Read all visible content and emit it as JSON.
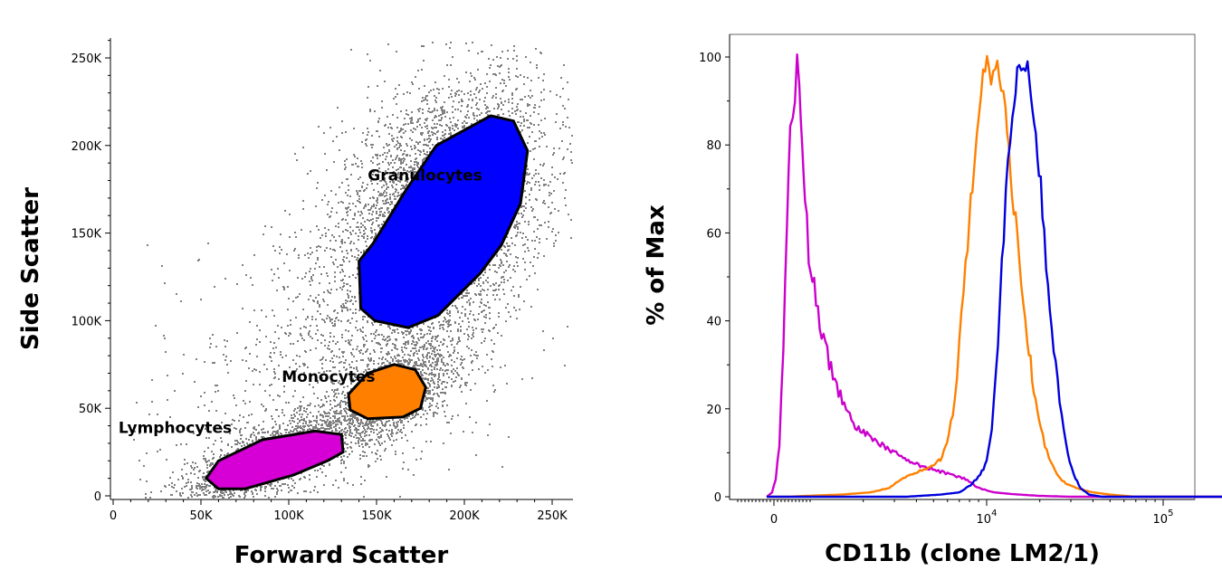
{
  "chart_data": [
    {
      "type": "scatter",
      "xlabel": "Forward Scatter",
      "ylabel": "Side Scatter",
      "xlim": [
        0,
        260000
      ],
      "ylim": [
        0,
        262000
      ],
      "x_ticks": [
        {
          "value": 0,
          "label": "0"
        },
        {
          "value": 50000,
          "label": "50K"
        },
        {
          "value": 100000,
          "label": "100K"
        },
        {
          "value": 150000,
          "label": "150K"
        },
        {
          "value": 200000,
          "label": "200K"
        },
        {
          "value": 250000,
          "label": "250K"
        }
      ],
      "y_ticks": [
        {
          "value": 0,
          "label": "0"
        },
        {
          "value": 50000,
          "label": "50K"
        },
        {
          "value": 100000,
          "label": "100K"
        },
        {
          "value": 150000,
          "label": "150K"
        },
        {
          "value": 200000,
          "label": "200K"
        },
        {
          "value": 250000,
          "label": "250K"
        }
      ],
      "point_color": "#808080",
      "density_clusters": [
        {
          "x": 90000,
          "y": 22000,
          "sx": 30000,
          "sy": 10000,
          "weight": 0.22
        },
        {
          "x": 160000,
          "y": 60000,
          "sx": 18000,
          "sy": 12000,
          "weight": 0.15
        },
        {
          "x": 185000,
          "y": 160000,
          "sx": 30000,
          "sy": 38000,
          "weight": 0.53
        },
        {
          "x": 120000,
          "y": 70000,
          "sx": 50000,
          "sy": 45000,
          "weight": 0.1
        }
      ],
      "gates": [
        {
          "name": "Granulocytes",
          "color": "#0000ff",
          "label_at": [
            145000,
            180000
          ],
          "polygon": [
            [
              215000,
              217000
            ],
            [
              228000,
              214000
            ],
            [
              236000,
              197000
            ],
            [
              232000,
              167000
            ],
            [
              221000,
              143000
            ],
            [
              209000,
              127000
            ],
            [
              185000,
              103000
            ],
            [
              168000,
              96000
            ],
            [
              149000,
              100000
            ],
            [
              141000,
              107000
            ],
            [
              140000,
              134000
            ],
            [
              148000,
              144000
            ],
            [
              167000,
              175000
            ],
            [
              184000,
              200000
            ]
          ]
        },
        {
          "name": "Monocytes",
          "color": "#ff8000",
          "label_at": [
            96000,
            65000
          ],
          "polygon": [
            [
              145000,
              70000
            ],
            [
              160000,
              75000
            ],
            [
              172000,
              72000
            ],
            [
              178000,
              62000
            ],
            [
              175000,
              50000
            ],
            [
              165000,
              45000
            ],
            [
              145000,
              44000
            ],
            [
              135000,
              49000
            ],
            [
              134000,
              58000
            ]
          ]
        },
        {
          "name": "Lymphocytes",
          "color": "#d600d6",
          "label_at": [
            3000,
            36000
          ],
          "polygon": [
            [
              60000,
              20000
            ],
            [
              85000,
              32000
            ],
            [
              115000,
              37000
            ],
            [
              130000,
              35000
            ],
            [
              131000,
              25000
            ],
            [
              122000,
              20000
            ],
            [
              103000,
              12000
            ],
            [
              75000,
              4000
            ],
            [
              60000,
              4000
            ],
            [
              53000,
              10000
            ]
          ]
        }
      ]
    },
    {
      "type": "line",
      "xlabel": "CD11b (clone LM2/1)",
      "ylabel": "% of Max",
      "xscale": "biexponential",
      "ylim": [
        0,
        100
      ],
      "y_ticks": [
        0,
        20,
        40,
        60,
        80,
        100
      ],
      "x_ticks": [
        {
          "value": 0,
          "base": "0",
          "exp": ""
        },
        {
          "value": 10000,
          "base": "10",
          "exp": "4"
        },
        {
          "value": 100000,
          "base": "10",
          "exp": "5"
        }
      ],
      "series": [
        {
          "color": "#cc00cc",
          "points": [
            [
              -200,
              0
            ],
            [
              -50,
              1
            ],
            [
              50,
              4
            ],
            [
              150,
              12
            ],
            [
              260,
              35
            ],
            [
              360,
              62
            ],
            [
              450,
              84
            ],
            [
              520,
              87
            ],
            [
              580,
              92
            ],
            [
              640,
              98
            ],
            [
              700,
              92
            ],
            [
              780,
              82
            ],
            [
              860,
              70
            ],
            [
              960,
              56
            ],
            [
              1080,
              44
            ],
            [
              1220,
              34
            ],
            [
              1380,
              26
            ],
            [
              1560,
              21
            ],
            [
              1800,
              16
            ],
            [
              2100,
              14
            ],
            [
              2500,
              12
            ],
            [
              3000,
              10
            ],
            [
              3600,
              8
            ],
            [
              4300,
              7
            ],
            [
              5200,
              6
            ],
            [
              6300,
              5
            ],
            [
              7600,
              4
            ],
            [
              9000,
              2
            ],
            [
              11000,
              1
            ],
            [
              14000,
              0.6
            ],
            [
              20000,
              0.2
            ],
            [
              30000,
              0
            ],
            [
              300000,
              0
            ]
          ]
        },
        {
          "color": "#ff8000",
          "points": [
            [
              -200,
              0
            ],
            [
              400,
              0
            ],
            [
              900,
              0.2
            ],
            [
              1500,
              0.5
            ],
            [
              2200,
              1
            ],
            [
              2800,
              2
            ],
            [
              3300,
              4
            ],
            [
              3800,
              5
            ],
            [
              4300,
              6
            ],
            [
              5000,
              7
            ],
            [
              5600,
              9
            ],
            [
              6100,
              14
            ],
            [
              6600,
              22
            ],
            [
              7000,
              35
            ],
            [
              7400,
              48
            ],
            [
              7800,
              58
            ],
            [
              8300,
              70
            ],
            [
              8800,
              80
            ],
            [
              9300,
              91
            ],
            [
              9800,
              99
            ],
            [
              10300,
              96
            ],
            [
              10900,
              94
            ],
            [
              11500,
              98
            ],
            [
              12100,
              95
            ],
            [
              12800,
              88
            ],
            [
              13600,
              75
            ],
            [
              14600,
              62
            ],
            [
              15700,
              48
            ],
            [
              17000,
              36
            ],
            [
              18500,
              25
            ],
            [
              20300,
              15
            ],
            [
              22500,
              9
            ],
            [
              25000,
              5
            ],
            [
              28000,
              3
            ],
            [
              32000,
              2
            ],
            [
              40000,
              1
            ],
            [
              50000,
              0.5
            ],
            [
              70000,
              0
            ],
            [
              300000,
              0
            ]
          ]
        },
        {
          "color": "#0000dd",
          "points": [
            [
              -200,
              0
            ],
            [
              3500,
              0
            ],
            [
              5500,
              0.5
            ],
            [
              7000,
              1
            ],
            [
              8300,
              3
            ],
            [
              9200,
              5
            ],
            [
              10000,
              8
            ],
            [
              10700,
              15
            ],
            [
              11300,
              28
            ],
            [
              11900,
              45
            ],
            [
              12500,
              60
            ],
            [
              13200,
              75
            ],
            [
              14000,
              88
            ],
            [
              14900,
              96
            ],
            [
              15700,
              99
            ],
            [
              16600,
              98
            ],
            [
              17500,
              95
            ],
            [
              18600,
              86
            ],
            [
              19800,
              75
            ],
            [
              21200,
              60
            ],
            [
              22800,
              44
            ],
            [
              24600,
              30
            ],
            [
              26600,
              18
            ],
            [
              28800,
              10
            ],
            [
              31200,
              5
            ],
            [
              34000,
              2
            ],
            [
              38000,
              0.5
            ],
            [
              45000,
              0
            ],
            [
              300000,
              0
            ]
          ]
        }
      ]
    }
  ]
}
